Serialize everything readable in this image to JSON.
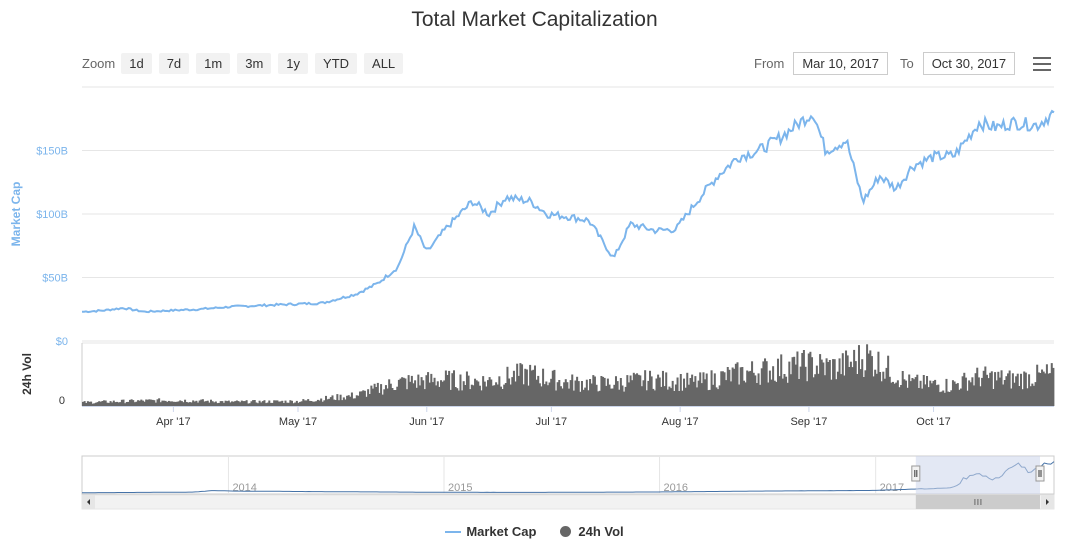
{
  "title": "Total Market Capitalization",
  "toolbar": {
    "zoom_label": "Zoom",
    "zoom_buttons": [
      "1d",
      "7d",
      "1m",
      "3m",
      "1y",
      "YTD",
      "ALL"
    ],
    "from_label": "From",
    "from_value": "Mar 10, 2017",
    "to_label": "To",
    "to_value": "Oct 30, 2017",
    "menu_icon": "hamburger-menu-icon"
  },
  "colors": {
    "market_cap": "#7cb5ec",
    "volume": "#666666",
    "navigator_line": "#4572a7",
    "navigator_mask": "#ccd6eb"
  },
  "chart_data": {
    "type": "line",
    "title": "Total Market Capitalization",
    "x_ticks": [
      "Apr '17",
      "May '17",
      "Jun '17",
      "Jul '17",
      "Aug '17",
      "Sep '17",
      "Oct '17"
    ],
    "navigator_ticks": [
      "2014",
      "2015",
      "2016",
      "2017"
    ],
    "series": [
      {
        "name": "Market Cap",
        "axis_label": "Market Cap",
        "y_ticks": [
          "$0",
          "$50B",
          "$100B",
          "$150B"
        ],
        "ylim": [
          0,
          200
        ],
        "unit": "$B",
        "points": [
          [
            "2017-03-10",
            23
          ],
          [
            "2017-03-15",
            24
          ],
          [
            "2017-03-20",
            26
          ],
          [
            "2017-03-25",
            23
          ],
          [
            "2017-03-31",
            24
          ],
          [
            "2017-04-07",
            25
          ],
          [
            "2017-04-15",
            27
          ],
          [
            "2017-04-22",
            28
          ],
          [
            "2017-04-30",
            29
          ],
          [
            "2017-05-07",
            30
          ],
          [
            "2017-05-15",
            37
          ],
          [
            "2017-05-20",
            45
          ],
          [
            "2017-05-25",
            58
          ],
          [
            "2017-05-29",
            90
          ],
          [
            "2017-06-01",
            70
          ],
          [
            "2017-06-06",
            90
          ],
          [
            "2017-06-12",
            110
          ],
          [
            "2017-06-16",
            100
          ],
          [
            "2017-06-20",
            113
          ],
          [
            "2017-06-26",
            110
          ],
          [
            "2017-06-30",
            100
          ],
          [
            "2017-07-05",
            98
          ],
          [
            "2017-07-10",
            95
          ],
          [
            "2017-07-16",
            65
          ],
          [
            "2017-07-20",
            92
          ],
          [
            "2017-07-26",
            87
          ],
          [
            "2017-07-31",
            88
          ],
          [
            "2017-08-05",
            110
          ],
          [
            "2017-08-10",
            130
          ],
          [
            "2017-08-15",
            145
          ],
          [
            "2017-08-20",
            150
          ],
          [
            "2017-08-25",
            160
          ],
          [
            "2017-08-31",
            175
          ],
          [
            "2017-09-02",
            180
          ],
          [
            "2017-09-05",
            150
          ],
          [
            "2017-09-10",
            158
          ],
          [
            "2017-09-14",
            110
          ],
          [
            "2017-09-18",
            130
          ],
          [
            "2017-09-22",
            120
          ],
          [
            "2017-09-26",
            138
          ],
          [
            "2017-10-01",
            145
          ],
          [
            "2017-10-06",
            146
          ],
          [
            "2017-10-12",
            172
          ],
          [
            "2017-10-16",
            168
          ],
          [
            "2017-10-20",
            172
          ],
          [
            "2017-10-26",
            170
          ],
          [
            "2017-10-30",
            180
          ]
        ]
      },
      {
        "name": "24h Vol",
        "axis_label": "24h Vol",
        "y_ticks": [
          "0"
        ],
        "unit": "relative",
        "points": [
          [
            "2017-03-10",
            0.06
          ],
          [
            "2017-03-20",
            0.08
          ],
          [
            "2017-04-01",
            0.1
          ],
          [
            "2017-04-15",
            0.07
          ],
          [
            "2017-05-01",
            0.08
          ],
          [
            "2017-05-15",
            0.18
          ],
          [
            "2017-05-25",
            0.4
          ],
          [
            "2017-06-05",
            0.45
          ],
          [
            "2017-06-15",
            0.42
          ],
          [
            "2017-06-25",
            0.55
          ],
          [
            "2017-07-05",
            0.4
          ],
          [
            "2017-07-15",
            0.38
          ],
          [
            "2017-07-25",
            0.45
          ],
          [
            "2017-08-05",
            0.4
          ],
          [
            "2017-08-15",
            0.55
          ],
          [
            "2017-08-25",
            0.65
          ],
          [
            "2017-09-01",
            0.7
          ],
          [
            "2017-09-08",
            0.65
          ],
          [
            "2017-09-15",
            0.85
          ],
          [
            "2017-09-25",
            0.4
          ],
          [
            "2017-10-05",
            0.35
          ],
          [
            "2017-10-12",
            0.5
          ],
          [
            "2017-10-20",
            0.45
          ],
          [
            "2017-10-30",
            0.55
          ]
        ]
      }
    ],
    "grid": true,
    "legend": "bottom-center",
    "navigator": {
      "range": [
        "2013",
        "2017-10-30"
      ],
      "selected": [
        "2017-03-10",
        "2017-10-30"
      ]
    }
  },
  "legend": {
    "market_cap": "Market Cap",
    "volume": "24h Vol"
  }
}
